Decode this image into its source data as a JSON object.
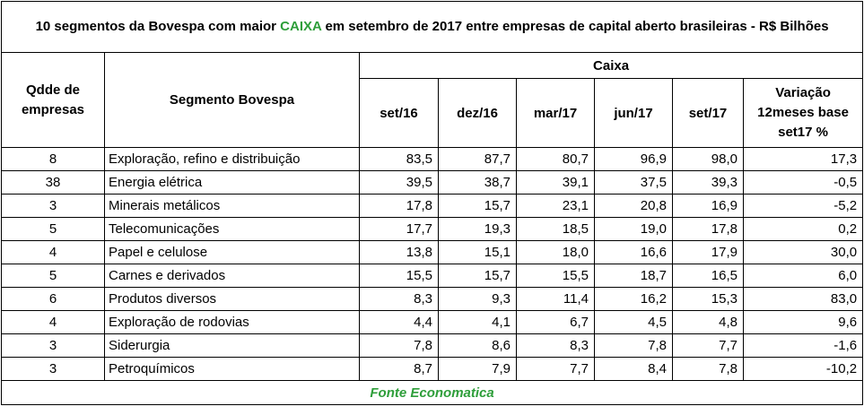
{
  "title": {
    "before": "10 segmentos da Bovespa com maior ",
    "highlight": "CAIXA",
    "after": " em setembro de 2017 entre empresas de capital aberto brasileiras - R$ Bilhões"
  },
  "headers": {
    "qty": "Qdde de empresas",
    "segment": "Segmento Bovespa",
    "group": "Caixa",
    "periods": [
      "set/16",
      "dez/16",
      "mar/17",
      "jun/17",
      "set/17"
    ],
    "variation_line1": "Variação",
    "variation_line2": "12meses base",
    "variation_line3": "set17 %"
  },
  "rows": [
    {
      "qty": "8",
      "segment": "Exploração, refino e distribuição",
      "values": [
        "83,5",
        "87,7",
        "80,7",
        "96,9",
        "98,0"
      ],
      "variation": "17,3"
    },
    {
      "qty": "38",
      "segment": "Energia elétrica",
      "values": [
        "39,5",
        "38,7",
        "39,1",
        "37,5",
        "39,3"
      ],
      "variation": "-0,5"
    },
    {
      "qty": "3",
      "segment": "Minerais metálicos",
      "values": [
        "17,8",
        "15,7",
        "23,1",
        "20,8",
        "16,9"
      ],
      "variation": "-5,2"
    },
    {
      "qty": "5",
      "segment": "Telecomunicações",
      "values": [
        "17,7",
        "19,3",
        "18,5",
        "19,0",
        "17,8"
      ],
      "variation": "0,2"
    },
    {
      "qty": "4",
      "segment": "Papel e celulose",
      "values": [
        "13,8",
        "15,1",
        "18,0",
        "16,6",
        "17,9"
      ],
      "variation": "30,0"
    },
    {
      "qty": "5",
      "segment": "Carnes e derivados",
      "values": [
        "15,5",
        "15,7",
        "15,5",
        "18,7",
        "16,5"
      ],
      "variation": "6,0"
    },
    {
      "qty": "6",
      "segment": "Produtos diversos",
      "values": [
        "8,3",
        "9,3",
        "11,4",
        "16,2",
        "15,3"
      ],
      "variation": "83,0"
    },
    {
      "qty": "4",
      "segment": "Exploração de rodovias",
      "values": [
        "4,4",
        "4,1",
        "6,7",
        "4,5",
        "4,8"
      ],
      "variation": "9,6"
    },
    {
      "qty": "3",
      "segment": "Siderurgia",
      "values": [
        "7,8",
        "8,6",
        "8,3",
        "7,8",
        "7,7"
      ],
      "variation": "-1,6"
    },
    {
      "qty": "3",
      "segment": "Petroquímicos",
      "values": [
        "8,7",
        "7,9",
        "7,7",
        "8,4",
        "7,8"
      ],
      "variation": "-10,2"
    }
  ],
  "source": "Fonte Economatica",
  "colors": {
    "accent_green": "#2e9e3a"
  }
}
